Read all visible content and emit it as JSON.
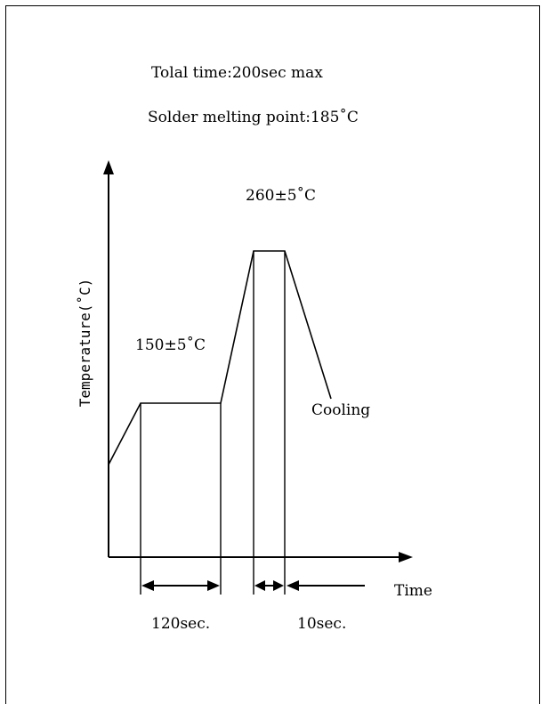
{
  "notes": {
    "total_time": "Tolal time:200sec max",
    "melting_point": "Solder melting point:185˚C"
  },
  "axes": {
    "y_label": "Temperature(˚C)",
    "x_label": "Time"
  },
  "labels": {
    "peak_temp": "260±5˚C",
    "soak_temp": "150±5˚C",
    "cooling": "Cooling",
    "soak_duration": "120sec.",
    "peak_duration": "10sec."
  },
  "colors": {
    "line": "#000000",
    "background": "#ffffff"
  }
}
